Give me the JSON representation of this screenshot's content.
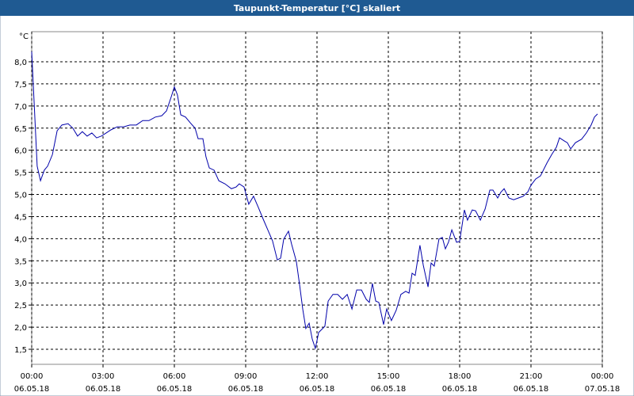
{
  "chart_data": {
    "type": "line",
    "title": "Taupunkt-Temperatur [°C] skaliert",
    "y_label": "°C",
    "xlim": [
      0,
      24
    ],
    "ylim": [
      1.16,
      8.68
    ],
    "grid": true,
    "xticks": [
      {
        "value": 0,
        "label": [
          "00:00",
          "06.05.18"
        ]
      },
      {
        "value": 3,
        "label": [
          "03:00",
          "06.05.18"
        ]
      },
      {
        "value": 6,
        "label": [
          "06:00",
          "06.05.18"
        ]
      },
      {
        "value": 9,
        "label": [
          "09:00",
          "06.05.18"
        ]
      },
      {
        "value": 12,
        "label": [
          "12:00",
          "06.05.18"
        ]
      },
      {
        "value": 15,
        "label": [
          "15:00",
          "06.05.18"
        ]
      },
      {
        "value": 18,
        "label": [
          "18:00",
          "06.05.18"
        ]
      },
      {
        "value": 21,
        "label": [
          "21:00",
          "06.05.18"
        ]
      },
      {
        "value": 24,
        "label": [
          "00:00",
          "07.05.18"
        ]
      }
    ],
    "yticks": [
      {
        "value": 1.5,
        "label": "1,5"
      },
      {
        "value": 2,
        "label": "2,0"
      },
      {
        "value": 2.5,
        "label": "2,5"
      },
      {
        "value": 3,
        "label": "3,0"
      },
      {
        "value": 3.5,
        "label": "3,5"
      },
      {
        "value": 4,
        "label": "4,0"
      },
      {
        "value": 4.5,
        "label": "4,5"
      },
      {
        "value": 5,
        "label": "5,0"
      },
      {
        "value": 5.5,
        "label": "5,5"
      },
      {
        "value": 6,
        "label": "6,0"
      },
      {
        "value": 6.5,
        "label": "6,5"
      },
      {
        "value": 7,
        "label": "7,0"
      },
      {
        "value": 7.5,
        "label": "7,5"
      },
      {
        "value": 8,
        "label": "8,0"
      }
    ],
    "x": [
      0,
      0.23,
      0.37,
      0.53,
      0.67,
      0.87,
      1.07,
      1.27,
      1.53,
      1.73,
      1.93,
      2.13,
      2.33,
      2.53,
      2.73,
      2.93,
      3.13,
      3.33,
      3.6,
      3.87,
      4.13,
      4.4,
      4.67,
      4.93,
      5.2,
      5.47,
      5.67,
      5.87,
      6,
      6.13,
      6.27,
      6.47,
      6.67,
      6.87,
      7,
      7.2,
      7.33,
      7.47,
      7.67,
      7.87,
      8.13,
      8.4,
      8.6,
      8.73,
      8.93,
      9.13,
      9.33,
      9.53,
      9.73,
      9.93,
      10.13,
      10.33,
      10.47,
      10.6,
      10.8,
      10.93,
      11.13,
      11.27,
      11.4,
      11.53,
      11.67,
      11.8,
      11.93,
      12.07,
      12.2,
      12.33,
      12.47,
      12.67,
      12.87,
      13.07,
      13.27,
      13.47,
      13.67,
      13.87,
      14.07,
      14.2,
      14.33,
      14.47,
      14.6,
      14.8,
      14.93,
      15.13,
      15.33,
      15.53,
      15.73,
      15.87,
      16,
      16.13,
      16.33,
      16.47,
      16.67,
      16.8,
      16.93,
      17.13,
      17.27,
      17.4,
      17.53,
      17.67,
      17.87,
      18,
      18.2,
      18.33,
      18.53,
      18.67,
      18.87,
      19.07,
      19.27,
      19.4,
      19.6,
      19.73,
      19.87,
      20.07,
      20.27,
      20.47,
      20.67,
      20.87,
      21,
      21.2,
      21.4,
      21.67,
      21.87,
      22.07,
      22.2,
      22.4,
      22.53,
      22.67,
      22.87,
      23.13,
      23.33,
      23.53,
      23.67,
      23.8
    ],
    "series": [
      {
        "name": "Taupunkt",
        "color": "#0000aa",
        "values": [
          8.23,
          5.64,
          5.31,
          5.55,
          5.64,
          5.9,
          6.44,
          6.57,
          6.6,
          6.5,
          6.32,
          6.42,
          6.32,
          6.39,
          6.28,
          6.32,
          6.39,
          6.46,
          6.53,
          6.53,
          6.57,
          6.57,
          6.67,
          6.67,
          6.75,
          6.78,
          6.89,
          7.21,
          7.43,
          7.25,
          6.8,
          6.75,
          6.62,
          6.5,
          6.26,
          6.26,
          5.85,
          5.6,
          5.55,
          5.31,
          5.24,
          5.13,
          5.17,
          5.24,
          5.17,
          4.78,
          4.96,
          4.71,
          4.45,
          4.2,
          3.95,
          3.52,
          3.56,
          3.99,
          4.17,
          3.88,
          3.49,
          2.95,
          2.41,
          1.97,
          2.09,
          1.73,
          1.52,
          1.88,
          1.95,
          2.02,
          2.59,
          2.74,
          2.74,
          2.63,
          2.74,
          2.41,
          2.84,
          2.84,
          2.63,
          2.56,
          2.99,
          2.59,
          2.56,
          2.06,
          2.41,
          2.15,
          2.38,
          2.74,
          2.81,
          2.77,
          3.22,
          3.17,
          3.85,
          3.4,
          2.91,
          3.45,
          3.38,
          3.99,
          4.03,
          3.77,
          3.92,
          4.2,
          3.92,
          3.94,
          4.65,
          4.42,
          4.65,
          4.63,
          4.42,
          4.67,
          5.1,
          5.1,
          4.92,
          5.05,
          5.13,
          4.92,
          4.88,
          4.92,
          4.96,
          5.06,
          5.21,
          5.35,
          5.42,
          5.71,
          5.9,
          6.07,
          6.28,
          6.21,
          6.17,
          6.03,
          6.17,
          6.25,
          6.39,
          6.57,
          6.75,
          6.82
        ]
      }
    ]
  }
}
